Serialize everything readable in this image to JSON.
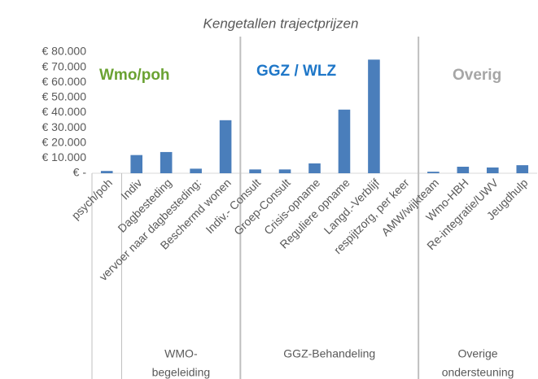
{
  "chart_data": {
    "type": "bar",
    "title": "Kengetallen trajectprijzen",
    "color": "#4a7ebb",
    "ylim": [
      0,
      80000
    ],
    "yticks": [
      {
        "value": 0,
        "label": "€ -"
      },
      {
        "value": 10000,
        "label": "€ 10.000"
      },
      {
        "value": 20000,
        "label": "€ 20.000"
      },
      {
        "value": 30000,
        "label": "€ 30.000"
      },
      {
        "value": 40000,
        "label": "€ 40.000"
      },
      {
        "value": 50000,
        "label": "€ 50.000"
      },
      {
        "value": 60000,
        "label": "€ 60.000"
      },
      {
        "value": 70000,
        "label": "€ 70.000"
      },
      {
        "value": 80000,
        "label": "€ 80.000"
      }
    ],
    "groups": [
      {
        "label": null,
        "categories": [
          "psych/poh"
        ],
        "values": [
          1500
        ]
      },
      {
        "label": [
          "WMO-",
          "begeleiding"
        ],
        "categories": [
          "Indiv",
          "Dagbesteding",
          "vervoer naar dagbesteding:",
          "Beschermd wonen"
        ],
        "values": [
          12000,
          14000,
          3000,
          35000
        ]
      },
      {
        "label": [
          "GGZ-Behandeling"
        ],
        "categories": [
          "Indiv.- Consult",
          "Groep-Consult",
          "Crisis-opname",
          "Reguliere opname",
          "Langd.-Verblijf",
          "respijtzorg, per keer"
        ],
        "values": [
          2500,
          2500,
          6500,
          42000,
          75000,
          0
        ]
      },
      {
        "label": [
          "Overige",
          "ondersteuning"
        ],
        "categories": [
          "AMW/wijkteam",
          "Wmo-HBH",
          "Re-integratie/UWV",
          "Jeugdhulp"
        ],
        "values": [
          1000,
          4300,
          3800,
          5300
        ]
      }
    ],
    "annotations": [
      {
        "text": "Wmo/poh",
        "color": "#6aa232"
      },
      {
        "text": "GGZ / WLZ",
        "color": "#1f77c8"
      },
      {
        "text": "Overig",
        "color": "#a6a6a6"
      }
    ]
  }
}
